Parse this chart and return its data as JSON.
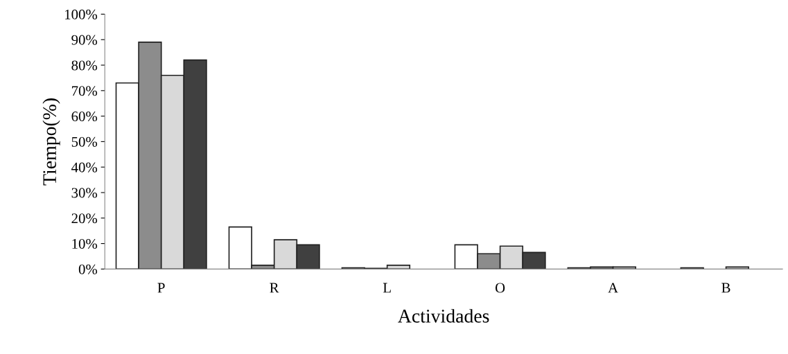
{
  "chart_data": {
    "type": "bar",
    "xlabel": "Actividades",
    "ylabel": "Tiempo(%)",
    "categories": [
      "P",
      "R",
      "L",
      "O",
      "A",
      "B"
    ],
    "series": [
      {
        "color": "#ffffff",
        "values": [
          73,
          16.5,
          0.5,
          9.5,
          0.5,
          0.5
        ]
      },
      {
        "color": "#8c8c8c",
        "values": [
          89,
          1.5,
          0.3,
          6,
          0.8,
          0
        ]
      },
      {
        "color": "#d9d9d9",
        "values": [
          76,
          11.5,
          1.5,
          9,
          0.8,
          0.8
        ]
      },
      {
        "color": "#404040",
        "values": [
          82,
          9.5,
          0,
          6.5,
          0,
          0
        ]
      }
    ],
    "ylim": [
      0,
      100
    ],
    "yticks": [
      {
        "value": 0,
        "label": "0%"
      },
      {
        "value": 10,
        "label": "10%"
      },
      {
        "value": 20,
        "label": "20%"
      },
      {
        "value": 30,
        "label": "30%"
      },
      {
        "value": 40,
        "label": "40%"
      },
      {
        "value": 50,
        "label": "50%"
      },
      {
        "value": 60,
        "label": "60%"
      },
      {
        "value": 70,
        "label": "70%"
      },
      {
        "value": 80,
        "label": "80%"
      },
      {
        "value": 90,
        "label": "90%"
      },
      {
        "value": 100,
        "label": "100%"
      }
    ],
    "grid": false
  }
}
